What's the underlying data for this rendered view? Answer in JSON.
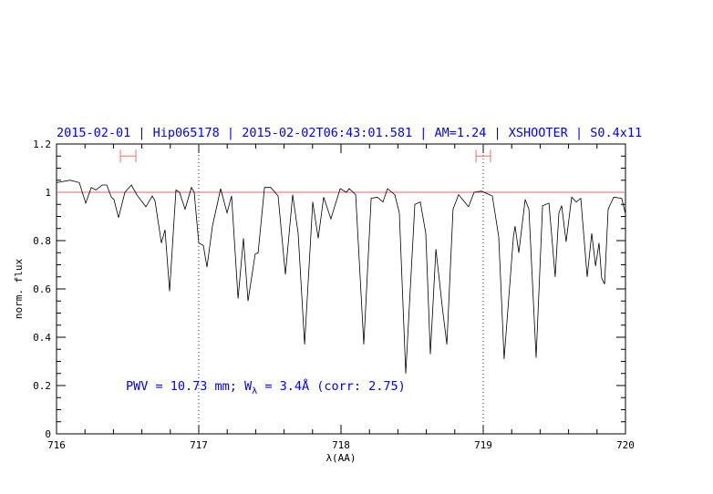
{
  "chart_data": {
    "type": "line",
    "title": "2015-02-01 | Hip065178 | 2015-02-02T06:43:01.581 | AM=1.24 | XSHOOTER | S0.4x11",
    "xlabel": "λ(AA)",
    "ylabel": "norm. flux",
    "xlim": [
      716,
      720
    ],
    "ylim": [
      0,
      1.2
    ],
    "x_ticks": [
      716,
      717,
      718,
      719,
      720
    ],
    "x_tick_labels": [
      "716",
      "717",
      "718",
      "719",
      "720"
    ],
    "y_ticks": [
      0,
      0.2,
      0.4,
      0.6,
      0.8,
      1,
      1.2
    ],
    "y_tick_labels": [
      "0",
      "0.2",
      "0.4",
      "0.6",
      "0.8",
      "1",
      "1.2"
    ],
    "grid": false,
    "annotation": {
      "prefix": "PWV = 10.73 mm; W",
      "subscript": "λ",
      "suffix": " = 3.4Å (corr: 2.75)"
    },
    "reference_line": {
      "y": 1.0,
      "color": "#e06666"
    },
    "vertical_dotted_lines": [
      717,
      719
    ],
    "error_bars": [
      {
        "y": 1.15,
        "x_range": [
          716.449,
          716.558
        ],
        "color": "#f07070"
      },
      {
        "y": 1.15,
        "x_range": [
          718.949,
          719.051
        ],
        "color": "#f07070"
      }
    ],
    "colors": {
      "spectrum": "#000000",
      "title": "#0000ff",
      "annotation": "#0000ff"
    },
    "series": [
      {
        "x": [
          716.0,
          716.096,
          716.16,
          716.205,
          716.244,
          716.276,
          716.321,
          716.353,
          716.385,
          716.404,
          716.436,
          716.481,
          716.526,
          716.564,
          716.628,
          716.673,
          716.692,
          716.737,
          716.763,
          716.795,
          716.84,
          716.865,
          716.904,
          716.949,
          716.968,
          717.0,
          717.032,
          717.058,
          717.096,
          717.154,
          717.199,
          717.231,
          717.276,
          717.314,
          717.346,
          717.397,
          717.417,
          717.462,
          717.506,
          717.558,
          717.609,
          717.66,
          717.699,
          717.744,
          717.801,
          717.84,
          717.878,
          717.929,
          717.994,
          718.038,
          718.058,
          718.103,
          718.16,
          718.212,
          718.256,
          718.295,
          718.327,
          718.378,
          718.41,
          718.455,
          718.519,
          718.558,
          718.596,
          718.628,
          718.667,
          718.712,
          718.744,
          718.788,
          718.827,
          718.897,
          718.936,
          718.987,
          719.064,
          719.109,
          719.147,
          719.212,
          719.224,
          719.25,
          719.295,
          719.321,
          719.372,
          719.417,
          719.462,
          719.506,
          719.532,
          719.551,
          719.583,
          719.622,
          719.654,
          719.686,
          719.731,
          719.763,
          719.79,
          719.814,
          719.833,
          719.853,
          719.878,
          719.917,
          719.974,
          720.0
        ],
        "y": [
          1.04,
          1.05,
          1.04,
          0.955,
          1.02,
          1.01,
          1.03,
          1.03,
          0.98,
          0.97,
          0.895,
          1.0,
          1.03,
          0.99,
          0.94,
          0.985,
          0.965,
          0.79,
          0.845,
          0.59,
          1.01,
          1.0,
          0.93,
          1.02,
          1.0,
          0.79,
          0.78,
          0.69,
          0.86,
          1.015,
          0.915,
          0.985,
          0.56,
          0.81,
          0.55,
          0.745,
          0.75,
          1.02,
          1.02,
          0.985,
          0.66,
          0.99,
          0.83,
          0.37,
          0.96,
          0.81,
          0.98,
          0.89,
          1.015,
          1.0,
          1.015,
          0.99,
          0.37,
          0.975,
          0.98,
          0.96,
          1.015,
          0.99,
          0.915,
          0.25,
          0.95,
          0.96,
          0.83,
          0.33,
          0.765,
          0.525,
          0.37,
          0.93,
          0.99,
          0.94,
          1.0,
          1.005,
          0.985,
          0.815,
          0.31,
          0.815,
          0.86,
          0.75,
          0.97,
          0.93,
          0.315,
          0.945,
          0.955,
          0.65,
          0.915,
          0.945,
          0.795,
          0.98,
          0.96,
          0.975,
          0.65,
          0.83,
          0.695,
          0.79,
          0.645,
          0.62,
          0.93,
          0.98,
          0.975,
          0.91
        ]
      }
    ]
  }
}
